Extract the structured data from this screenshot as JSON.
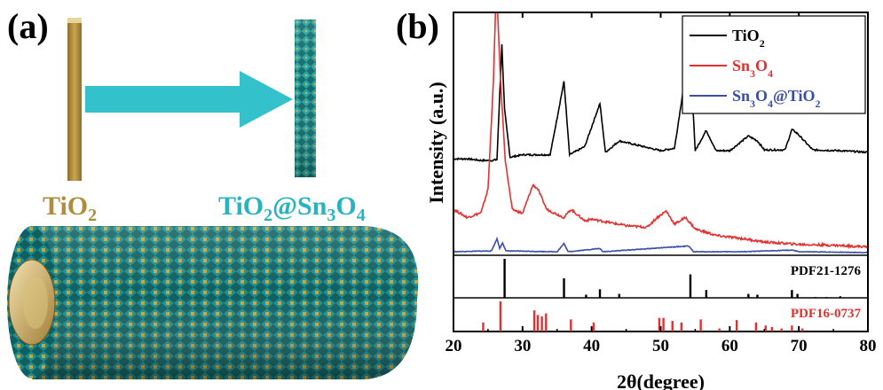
{
  "panel_a": {
    "label": "(a)",
    "left_material": "TiO",
    "left_material_sub": "2",
    "right_material": {
      "p1": "TiO",
      "s1": "2",
      "p2": "@Sn",
      "s2": "3",
      "p3": "O",
      "s3": "4"
    },
    "colors": {
      "rod": "#b08d3c",
      "rod_light": "#c9a551",
      "arrow": "#33c1cc",
      "right_label": "#27b4c2",
      "nanosheet": "#1b7f7f"
    }
  },
  "chart_data": {
    "type": "line",
    "panel_label": "(b)",
    "xlabel": "2θ(degree)",
    "ylabel": "Intensity (a.u.)",
    "xlim": [
      20,
      80
    ],
    "xticks": [
      20,
      30,
      40,
      50,
      60,
      70,
      80
    ],
    "legend_position": "top-right",
    "legend": [
      {
        "parts": [
          {
            "t": "TiO",
            "sub": false
          },
          {
            "t": "2",
            "sub": true
          }
        ],
        "color": "#000000"
      },
      {
        "parts": [
          {
            "t": "Sn",
            "sub": false
          },
          {
            "t": "3",
            "sub": true
          },
          {
            "t": "O",
            "sub": false
          },
          {
            "t": "4",
            "sub": true
          }
        ],
        "color": "#e3302f"
      },
      {
        "parts": [
          {
            "t": "Sn",
            "sub": false
          },
          {
            "t": "3",
            "sub": true
          },
          {
            "t": "O",
            "sub": false
          },
          {
            "t": "4",
            "sub": true
          },
          {
            "t": "@TiO",
            "sub": false
          },
          {
            "t": "2",
            "sub": true
          }
        ],
        "color": "#3a4ea8"
      }
    ],
    "series": [
      {
        "key": "tio2",
        "color": "#000000",
        "baseline": 175,
        "noise": 1.0,
        "points": [
          [
            20,
            190
          ],
          [
            22,
            190
          ],
          [
            24,
            188
          ],
          [
            25.5,
            188
          ],
          [
            26.3,
            189
          ],
          [
            27.0,
            330
          ],
          [
            27.4,
            250
          ],
          [
            28.2,
            192
          ],
          [
            30,
            195
          ],
          [
            34,
            195
          ],
          [
            36.0,
            285
          ],
          [
            36.8,
            195
          ],
          [
            39.0,
            205
          ],
          [
            41.2,
            258
          ],
          [
            42,
            198
          ],
          [
            44.0,
            212
          ],
          [
            50,
            200
          ],
          [
            52,
            203
          ],
          [
            54.2,
            328
          ],
          [
            55,
            200
          ],
          [
            56.6,
            225
          ],
          [
            58,
            200
          ],
          [
            60,
            200
          ],
          [
            62.7,
            218
          ],
          [
            64,
            212
          ],
          [
            65,
            201
          ],
          [
            68,
            201
          ],
          [
            69.0,
            226
          ],
          [
            69.8,
            221
          ],
          [
            72,
            201
          ],
          [
            76,
            200
          ],
          [
            80,
            198
          ]
        ]
      },
      {
        "key": "sn3o4",
        "color": "#e3302f",
        "baseline": 100,
        "noise": 1.4,
        "points": [
          [
            20,
            140
          ],
          [
            22,
            130
          ],
          [
            24,
            136
          ],
          [
            25,
            165
          ],
          [
            25.8,
            300
          ],
          [
            26.2,
            420
          ],
          [
            26.8,
            300
          ],
          [
            27.5,
            200
          ],
          [
            28.5,
            140
          ],
          [
            30,
            135
          ],
          [
            31.5,
            170
          ],
          [
            32.2,
            165
          ],
          [
            33.5,
            140
          ],
          [
            36,
            130
          ],
          [
            37.0,
            140
          ],
          [
            39,
            126
          ],
          [
            40,
            128
          ],
          [
            45,
            120
          ],
          [
            48,
            118
          ],
          [
            49.5,
            130
          ],
          [
            50.8,
            138
          ],
          [
            52,
            122
          ],
          [
            53.6,
            130
          ],
          [
            55,
            116
          ],
          [
            58,
            108
          ],
          [
            62,
            104
          ],
          [
            65,
            100
          ],
          [
            70,
            97
          ],
          [
            75,
            96
          ],
          [
            80,
            94
          ]
        ]
      },
      {
        "key": "sn3o4_tio2",
        "color": "#3a4ea8",
        "baseline": 58,
        "noise": 0.4,
        "points": [
          [
            20,
            58
          ],
          [
            25.5,
            59
          ],
          [
            26.3,
            74
          ],
          [
            26.7,
            62
          ],
          [
            27.1,
            69
          ],
          [
            27.6,
            59
          ],
          [
            35,
            58
          ],
          [
            36.0,
            68
          ],
          [
            36.6,
            58
          ],
          [
            41.2,
            62
          ],
          [
            41.6,
            58
          ],
          [
            54.0,
            65
          ],
          [
            54.8,
            58
          ],
          [
            62,
            58
          ],
          [
            69,
            60
          ],
          [
            70,
            58
          ],
          [
            80,
            57
          ]
        ]
      }
    ],
    "reference_patterns": [
      {
        "name": "PDF21-1276",
        "color": "#000000",
        "sticks": [
          [
            27.4,
            100
          ],
          [
            36.0,
            50
          ],
          [
            39.2,
            8
          ],
          [
            41.2,
            22
          ],
          [
            44.0,
            10
          ],
          [
            54.3,
            60
          ],
          [
            56.6,
            20
          ],
          [
            62.7,
            10
          ],
          [
            64.0,
            8
          ],
          [
            69.0,
            20
          ],
          [
            69.8,
            10
          ],
          [
            72.4,
            2
          ],
          [
            74.0,
            2
          ],
          [
            76.0,
            4
          ]
        ]
      },
      {
        "name": "PDF16-0737",
        "color": "#e3302f",
        "sticks": [
          [
            24.3,
            30
          ],
          [
            26.8,
            100
          ],
          [
            31.7,
            70
          ],
          [
            32.2,
            55
          ],
          [
            32.8,
            50
          ],
          [
            33.4,
            60
          ],
          [
            37.0,
            40
          ],
          [
            40.3,
            30
          ],
          [
            49.8,
            45
          ],
          [
            50.4,
            45
          ],
          [
            51.7,
            35
          ],
          [
            53.0,
            30
          ],
          [
            55.8,
            40
          ],
          [
            58.5,
            10
          ],
          [
            61.0,
            38
          ],
          [
            63.8,
            30
          ],
          [
            65.2,
            20
          ],
          [
            66.1,
            15
          ],
          [
            67.5,
            10
          ],
          [
            69.0,
            20
          ],
          [
            70.5,
            10
          ]
        ]
      }
    ]
  }
}
